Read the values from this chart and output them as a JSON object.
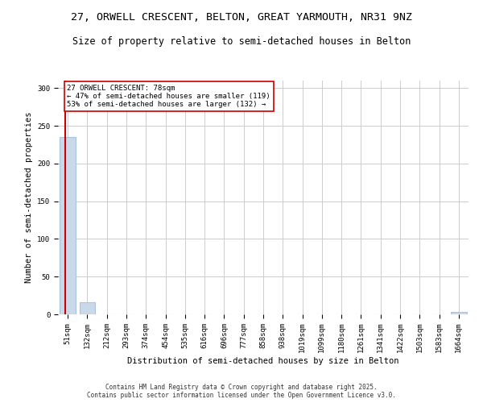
{
  "title": "27, ORWELL CRESCENT, BELTON, GREAT YARMOUTH, NR31 9NZ",
  "subtitle": "Size of property relative to semi-detached houses in Belton",
  "xlabel": "Distribution of semi-detached houses by size in Belton",
  "ylabel": "Number of semi-detached properties",
  "footer": "Contains HM Land Registry data © Crown copyright and database right 2025.\nContains public sector information licensed under the Open Government Licence v3.0.",
  "bins": [
    51,
    132,
    212,
    293,
    374,
    454,
    535,
    616,
    696,
    777,
    858,
    938,
    1019,
    1099,
    1180,
    1261,
    1341,
    1422,
    1503,
    1583,
    1664
  ],
  "bin_labels": [
    "51sqm",
    "132sqm",
    "212sqm",
    "293sqm",
    "374sqm",
    "454sqm",
    "535sqm",
    "616sqm",
    "696sqm",
    "777sqm",
    "858sqm",
    "938sqm",
    "1019sqm",
    "1099sqm",
    "1180sqm",
    "1261sqm",
    "1341sqm",
    "1422sqm",
    "1503sqm",
    "1583sqm",
    "1664sqm"
  ],
  "counts": [
    235,
    16,
    0,
    0,
    0,
    0,
    0,
    0,
    0,
    0,
    0,
    0,
    0,
    0,
    0,
    0,
    0,
    0,
    0,
    0,
    3
  ],
  "bar_color": "#c9d9ea",
  "bar_edgecolor": "#aac4de",
  "property_size": 78,
  "red_line_color": "#cc0000",
  "annotation_text": "27 ORWELL CRESCENT: 78sqm\n← 47% of semi-detached houses are smaller (119)\n53% of semi-detached houses are larger (132) →",
  "annotation_box_color": "#ffffff",
  "annotation_box_edgecolor": "#cc0000",
  "ylim": [
    0,
    310
  ],
  "yticks": [
    0,
    50,
    100,
    150,
    200,
    250,
    300
  ],
  "grid_color": "#cccccc",
  "bg_color": "#ffffff",
  "title_fontsize": 9.5,
  "subtitle_fontsize": 8.5,
  "axis_fontsize": 7.5,
  "tick_fontsize": 6.5,
  "footer_fontsize": 5.5
}
